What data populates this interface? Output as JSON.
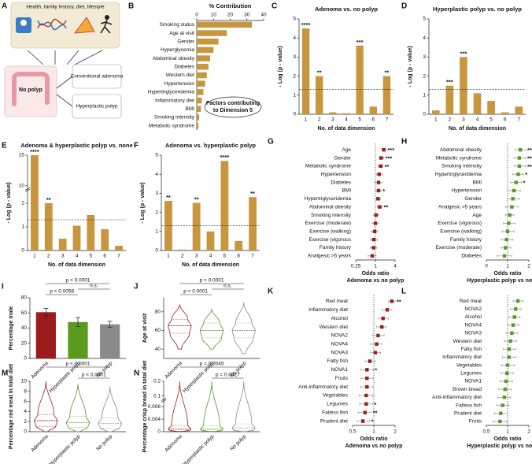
{
  "diagram": {
    "panel": "A",
    "title": "Health, family history, diet, lifestyle",
    "start": "No polyp",
    "outcomes": [
      "Conventional adenoma",
      "Hyperplastic polyp"
    ]
  },
  "chart_data": [
    {
      "panel": "B",
      "type": "hbar",
      "title": "% Contribution",
      "color": "#c8963e",
      "categories": [
        "Smoking status",
        "Age at visit",
        "Gender",
        "Hyperglycemia",
        "Abdominal obesity",
        "Diabetes",
        "Western diet",
        "Hypertension",
        "Hypertriglyceridemia",
        "Inflammatory diet",
        "BMI",
        "Smoking intensity",
        "Metabolic syndrome"
      ],
      "values": [
        33,
        18,
        13,
        10,
        8,
        7,
        6,
        5,
        4,
        3,
        2.5,
        1.5,
        1
      ],
      "xlim": [
        0,
        40
      ],
      "xticks": [
        0,
        10,
        20,
        30,
        40
      ],
      "annotation": [
        "Factors contributing",
        "to Dimension 5"
      ]
    },
    {
      "panel": "C",
      "type": "bar",
      "title": "Adenoma vs. no polyp",
      "ylabel": "- Log (p - value)",
      "xlabel": "No. of data dimension",
      "color": "#c8963e",
      "categories": [
        "1",
        "2",
        "3",
        "4",
        "5",
        "6",
        "7"
      ],
      "values": [
        4.5,
        2.0,
        0.1,
        0.05,
        3.6,
        0.4,
        2.0
      ],
      "stars": [
        "****",
        "**",
        null,
        null,
        "***",
        null,
        "**"
      ],
      "threshold": 1.3,
      "ylim": [
        0,
        5
      ],
      "yticks": [
        0,
        1,
        2,
        3,
        4,
        5
      ]
    },
    {
      "panel": "D",
      "type": "bar",
      "title": "Hyperplastic polyp  vs. no polyp",
      "ylabel": "- Log (p - value)",
      "xlabel": "No. of data dimension",
      "color": "#c8963e",
      "categories": [
        "1",
        "2",
        "3",
        "4",
        "5",
        "6",
        "7"
      ],
      "values": [
        0.2,
        1.5,
        3.0,
        1.1,
        0.7,
        0.1,
        0.4
      ],
      "stars": [
        null,
        "***",
        "***",
        null,
        null,
        null,
        null
      ],
      "threshold": 1.3,
      "ylim": [
        0,
        5
      ],
      "yticks": [
        0,
        1,
        2,
        3,
        4,
        5
      ]
    },
    {
      "panel": "E",
      "type": "bar",
      "title": "Adenoma & hyperplastic polyp vs. none",
      "ylabel": "- Log (p - value)",
      "xlabel": "No. of data dimension",
      "color": "#c8963e",
      "categories": [
        "1",
        "2",
        "3",
        "4",
        "5",
        "6",
        "7"
      ],
      "values": [
        15,
        2.0,
        0.5,
        1.05,
        1.5,
        0.9,
        0.2
      ],
      "stars": [
        "****",
        "**",
        null,
        null,
        null,
        null,
        null
      ],
      "threshold": 1.3,
      "ylim": [
        0,
        15
      ],
      "axis_break": [
        2.5,
        10
      ],
      "yticks": [
        0,
        1,
        2,
        10,
        15
      ]
    },
    {
      "panel": "F",
      "type": "bar",
      "title": "Adenoma vs. hyperplastic polyp",
      "ylabel": "- Log (p - value)",
      "xlabel": "No. of data dimension",
      "color": "#c8963e",
      "categories": [
        "1",
        "2",
        "3",
        "4",
        "5",
        "6",
        "7"
      ],
      "values": [
        2.6,
        0.05,
        2.5,
        1.0,
        4.7,
        0.5,
        2.8
      ],
      "stars": [
        "**",
        null,
        "**",
        null,
        "****",
        null,
        "**"
      ],
      "threshold": 1.3,
      "ylim": [
        0,
        5
      ],
      "yticks": [
        0,
        1,
        2,
        3,
        4,
        5
      ]
    },
    {
      "panel": "G",
      "type": "forest",
      "xlabel": [
        "Odds ratio",
        "Adenoma vs no polyp"
      ],
      "color": "#9b1c1c",
      "log_x": true,
      "reference": 1,
      "categories": [
        "Age",
        "Gender",
        "Metabolic syndrome",
        "Hypertension",
        "Diabetes",
        "BMI",
        "Hypertriglyceridemia",
        "Abdominal obesity",
        "Smoking intensity",
        "Exercise (moderate)",
        "Exercise (walking)",
        "Exercise (vigorous",
        "Family history",
        "Analgesic >5 years"
      ],
      "values": [
        1.8,
        1.5,
        1.45,
        1.3,
        1.25,
        1.25,
        1.2,
        1.35,
        1.05,
        1.0,
        0.95,
        0.9,
        0.88,
        0.8
      ],
      "ci_low": [
        1.6,
        1.3,
        1.2,
        1.1,
        0.95,
        1.05,
        1.0,
        1.15,
        0.85,
        0.8,
        0.75,
        0.7,
        0.7,
        0.6
      ],
      "ci_high": [
        2.1,
        1.8,
        1.7,
        1.6,
        1.6,
        1.5,
        1.45,
        1.6,
        1.3,
        1.25,
        1.2,
        1.15,
        1.1,
        1.05
      ],
      "stars": [
        "***",
        "***",
        "**",
        null,
        null,
        "*",
        null,
        "**",
        null,
        null,
        null,
        null,
        null,
        null
      ],
      "xlim": [
        0.25,
        4
      ],
      "xticks": [
        0.25,
        1,
        4
      ]
    },
    {
      "panel": "H",
      "type": "forest",
      "xlabel": [
        "Odds ratio",
        "Hyperplastic polyp vs no polyp"
      ],
      "color": "#5a9a1e",
      "log_x": false,
      "reference": 1,
      "categories": [
        "Abdominal obesity",
        "Metabolic syndrome",
        "Smoking intensity",
        "Hypertriglyceridemia",
        "BMI",
        "Hypertension",
        "Gender",
        "Analgesic >5 years",
        "Age",
        "Exercise (vigorous)",
        "Exercise (walking)",
        "Family history",
        "Exercise (moderate)",
        "Diabetes"
      ],
      "values": [
        1.6,
        1.55,
        1.55,
        1.5,
        1.4,
        1.3,
        1.25,
        1.2,
        1.1,
        1.05,
        1.0,
        0.95,
        0.9,
        0.85
      ],
      "ci_low": [
        1.35,
        1.3,
        1.3,
        1.25,
        1.15,
        1.0,
        1.0,
        0.9,
        0.9,
        0.8,
        0.75,
        0.7,
        0.7,
        0.5
      ],
      "ci_high": [
        1.85,
        1.85,
        1.85,
        1.75,
        1.65,
        1.6,
        1.55,
        1.5,
        1.3,
        1.35,
        1.3,
        1.25,
        1.15,
        1.2
      ],
      "stars": [
        "**",
        "**",
        "**",
        "*",
        "*",
        null,
        null,
        null,
        null,
        null,
        null,
        null,
        null,
        null
      ],
      "xlim": [
        0,
        2
      ],
      "xticks": [
        0,
        1,
        2
      ]
    },
    {
      "panel": "I",
      "type": "bar",
      "ylabel": "Percentage male",
      "colors": [
        "#9b1c1c",
        "#5a9a1e",
        "#8a8a8a"
      ],
      "categories": [
        "Adenoma",
        "Hyperplastic polyp",
        "No polyp"
      ],
      "values": [
        61,
        48,
        45
      ],
      "errors": [
        5,
        6,
        4
      ],
      "brackets": [
        {
          "between": [
            "Adenoma",
            "No polyp"
          ],
          "label": "p < 0.0001"
        },
        {
          "between": [
            "Adenoma",
            "Hyperplastic polyp"
          ],
          "label": "p < 0.0056"
        },
        {
          "between": [
            "Hyperplastic polyp",
            "No polyp"
          ],
          "label": "n.s."
        }
      ],
      "ylim": [
        0,
        80
      ],
      "yticks": [
        0,
        20,
        40,
        60,
        80
      ]
    },
    {
      "panel": "J",
      "type": "violin",
      "ylabel": "Age at visit",
      "colors": [
        "#9b1c1c",
        "#5a9a1e",
        "#8a8a8a"
      ],
      "categories": [
        "Adenoma",
        "Hyperplastic polyp",
        "No polyp"
      ],
      "min": [
        40,
        40,
        35
      ],
      "q1": [
        57,
        52,
        52
      ],
      "median": [
        65,
        60,
        60
      ],
      "q3": [
        72,
        68,
        68
      ],
      "max": [
        88,
        83,
        90
      ],
      "brackets": [
        {
          "between": [
            "Adenoma",
            "No polyp"
          ],
          "label": "p < 0.0001"
        },
        {
          "between": [
            "Adenoma",
            "Hyperplastic polyp"
          ],
          "label": "p < 0.0001"
        },
        {
          "between": [
            "Hyperplastic polyp",
            "No polyp"
          ],
          "label": "n.s."
        }
      ],
      "ylim": [
        30,
        95
      ],
      "yticks": [
        40,
        60,
        80
      ]
    },
    {
      "panel": "K",
      "type": "forest",
      "xlabel": [
        "Odds ratio",
        "Adenoma vs no polyp"
      ],
      "color": "#9b1c1c",
      "log_x": true,
      "reference": 1,
      "categories": [
        "Red meat",
        "Inflammatory diet",
        "Alcohol",
        "Western diet",
        "NOVA2",
        "NOVA4",
        "NOVA3",
        "Fatty fish",
        "NOVA1",
        "Fruits",
        "Anti-inflammatory diet",
        "Vegetables",
        "Legumes",
        "Fatless fish",
        "Prudent diet"
      ],
      "values": [
        1.8,
        1.55,
        1.35,
        1.3,
        1.15,
        1.1,
        1.05,
        0.88,
        0.8,
        0.8,
        0.8,
        0.78,
        0.78,
        0.75,
        0.7
      ],
      "ci_low": [
        1.6,
        1.3,
        1.15,
        1.1,
        0.95,
        0.9,
        0.9,
        0.75,
        0.65,
        0.65,
        0.65,
        0.62,
        0.63,
        0.6,
        0.58
      ],
      "ci_high": [
        2.0,
        1.8,
        1.6,
        1.5,
        1.4,
        1.3,
        1.25,
        1.05,
        0.98,
        0.98,
        0.98,
        0.97,
        0.96,
        0.92,
        0.87
      ],
      "stars": [
        "**",
        null,
        null,
        null,
        null,
        null,
        null,
        null,
        "*",
        null,
        null,
        null,
        "*",
        "**",
        "*"
      ],
      "xlim": [
        0.5,
        2
      ],
      "xticks": [
        0.5,
        1,
        2
      ]
    },
    {
      "panel": "L",
      "type": "forest",
      "xlabel": [
        "Odds ratio",
        "Hyperplastic polyp vs no polyp"
      ],
      "color": "#5a9a1e",
      "log_x": true,
      "reference": 1,
      "categories": [
        "Red meat",
        "NOVA2",
        "Alcohol",
        "NOVA4",
        "NOVA3",
        "Western diet",
        "Fatty fish",
        "Inflammatory diet",
        "Vegetables",
        "Legumes",
        "NOVA1",
        "Brown bread",
        "Anti-inflammatory diet",
        "Fatless fish",
        "Prudent diet",
        "Fruits"
      ],
      "values": [
        1.4,
        1.3,
        1.25,
        1.2,
        1.15,
        1.1,
        1.05,
        1.05,
        1.0,
        0.98,
        0.95,
        0.92,
        0.9,
        0.85,
        0.8,
        0.78
      ],
      "ci_low": [
        1.2,
        1.1,
        1.05,
        1.0,
        0.95,
        0.9,
        0.87,
        0.85,
        0.82,
        0.8,
        0.78,
        0.75,
        0.72,
        0.7,
        0.65,
        0.62
      ],
      "ci_high": [
        1.65,
        1.55,
        1.5,
        1.45,
        1.4,
        1.35,
        1.3,
        1.3,
        1.25,
        1.2,
        1.17,
        1.12,
        1.1,
        1.05,
        1.0,
        0.98
      ],
      "xlim": [
        0.5,
        2
      ],
      "xticks": [
        0.5,
        1,
        2
      ]
    },
    {
      "panel": "M",
      "type": "violin",
      "ylabel": "Percentage red meat in total diet",
      "colors": [
        "#9b1c1c",
        "#5a9a1e",
        "#8a8a8a"
      ],
      "categories": [
        "Adenoma",
        "Hyperplastic polyp",
        "No polyp"
      ],
      "min": [
        0,
        0,
        0
      ],
      "q1": [
        1,
        0.8,
        0.7
      ],
      "median": [
        2.2,
        1.8,
        1.6
      ],
      "q3": [
        3.4,
        3,
        2.8
      ],
      "max": [
        10,
        9.5,
        9
      ],
      "brackets": [
        {
          "between": [
            "Adenoma",
            "No polyp"
          ],
          "label": "p < 0.0001"
        },
        {
          "between": [
            "Hyperplastic polyp",
            "No polyp"
          ],
          "label": "p < 0.0001"
        }
      ],
      "ylim": [
        0,
        10
      ],
      "yticks": [
        0,
        2,
        4,
        6,
        8,
        10
      ]
    },
    {
      "panel": "N",
      "type": "violin",
      "ylabel": "Percentage crisp bread in total diet",
      "colors": [
        "#9b1c1c",
        "#5a9a1e",
        "#8a8a8a"
      ],
      "categories": [
        "Adenoma",
        "Hyperplastic polyp",
        "No polyp"
      ],
      "min": [
        0,
        0,
        0
      ],
      "q1": [
        0.0002,
        0.0002,
        0.0003
      ],
      "median": [
        0.0008,
        0.0008,
        0.0012
      ],
      "q3": [
        0.002,
        0.002,
        0.0025
      ],
      "max": [
        0.2,
        0.2,
        0.2
      ],
      "brackets": [
        {
          "between": [
            "Adenoma",
            "No polyp"
          ],
          "label": "p = 0.0045"
        },
        {
          "between": [
            "Hyperplastic polyp",
            "No polyp"
          ],
          "label": "p = 0.0027"
        }
      ],
      "ylim": [
        0,
        0.2
      ],
      "axis_break": [
        0.01,
        0.09
      ],
      "yticks": [
        0,
        0.004,
        0.008,
        0.1,
        0.2
      ]
    }
  ]
}
